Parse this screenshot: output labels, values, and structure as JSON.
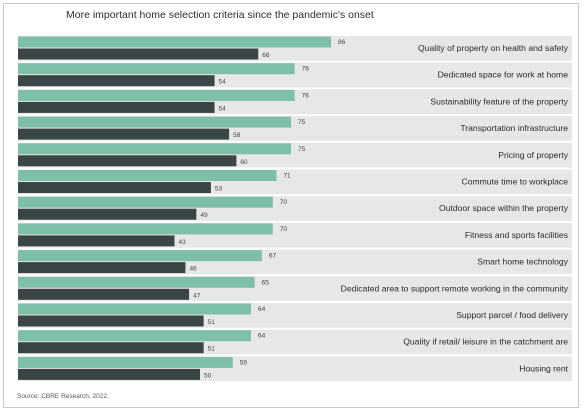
{
  "title": "More important home selection criteria since the pandemic's onset",
  "source": "Source: CBRE Research, 2022.",
  "colors": {
    "series_a": "#7dbfa8",
    "series_b": "#3a4645",
    "row_background": "#e7e7e7"
  },
  "chart_data": {
    "type": "bar",
    "orientation": "horizontal",
    "title": "More important home selection criteria since the pandemic's onset",
    "categories": [
      "Quality of property on health and safety",
      "Dedicated space for work at home",
      "Sustainability feature of the property",
      "Transportation infrastructure",
      "Pricing of property",
      "Commute time to workplace",
      "Outdoor space within the property",
      "Fitness and sports facilities",
      "Smart home technology",
      "Dedicated area to support remote working in the community",
      "Support parcel / food delivery",
      "Quality if retail/ leisure in the catchment are",
      "Housing rent"
    ],
    "series": [
      {
        "values": [
          86,
          76,
          76,
          75,
          75,
          71,
          70,
          70,
          67,
          65,
          64,
          64,
          59
        ]
      },
      {
        "values": [
          66,
          54,
          54,
          58,
          60,
          53,
          49,
          43,
          46,
          47,
          51,
          51,
          50
        ]
      }
    ],
    "xlim": [
      0,
      100
    ],
    "grid": false,
    "legend": "none",
    "data_labels": true
  }
}
